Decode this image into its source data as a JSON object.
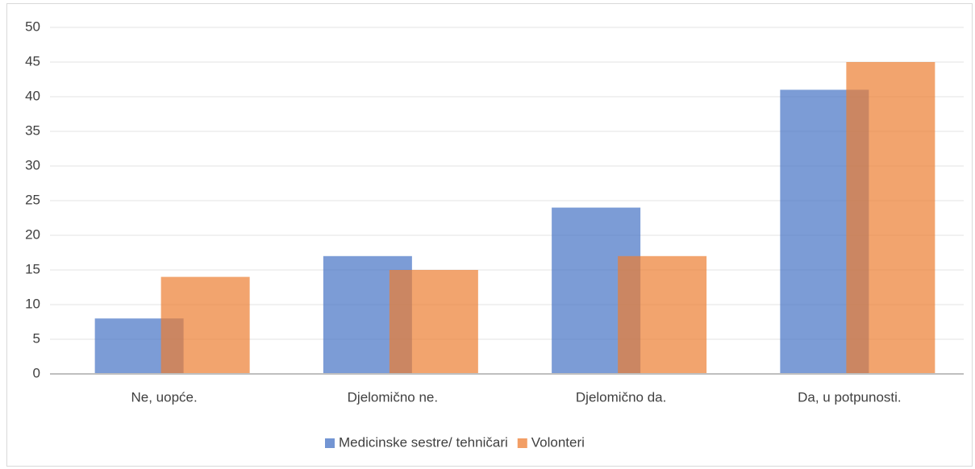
{
  "chart_data": {
    "type": "bar",
    "categories": [
      "Ne, uopće.",
      "Djelomično ne.",
      "Djelomično da.",
      "Da, u potpunosti."
    ],
    "series": [
      {
        "name": "Medicinske sestre/ tehničari",
        "color": "#4472c4",
        "values": [
          8,
          17,
          24,
          41
        ]
      },
      {
        "name": "Volonteri",
        "color": "#ed7d31",
        "values": [
          14,
          15,
          17,
          45
        ]
      }
    ],
    "ylim": [
      0,
      50
    ],
    "yticks": [
      0,
      5,
      10,
      15,
      20,
      25,
      30,
      35,
      40,
      45,
      50
    ],
    "grid": true,
    "legend": "bottom"
  }
}
